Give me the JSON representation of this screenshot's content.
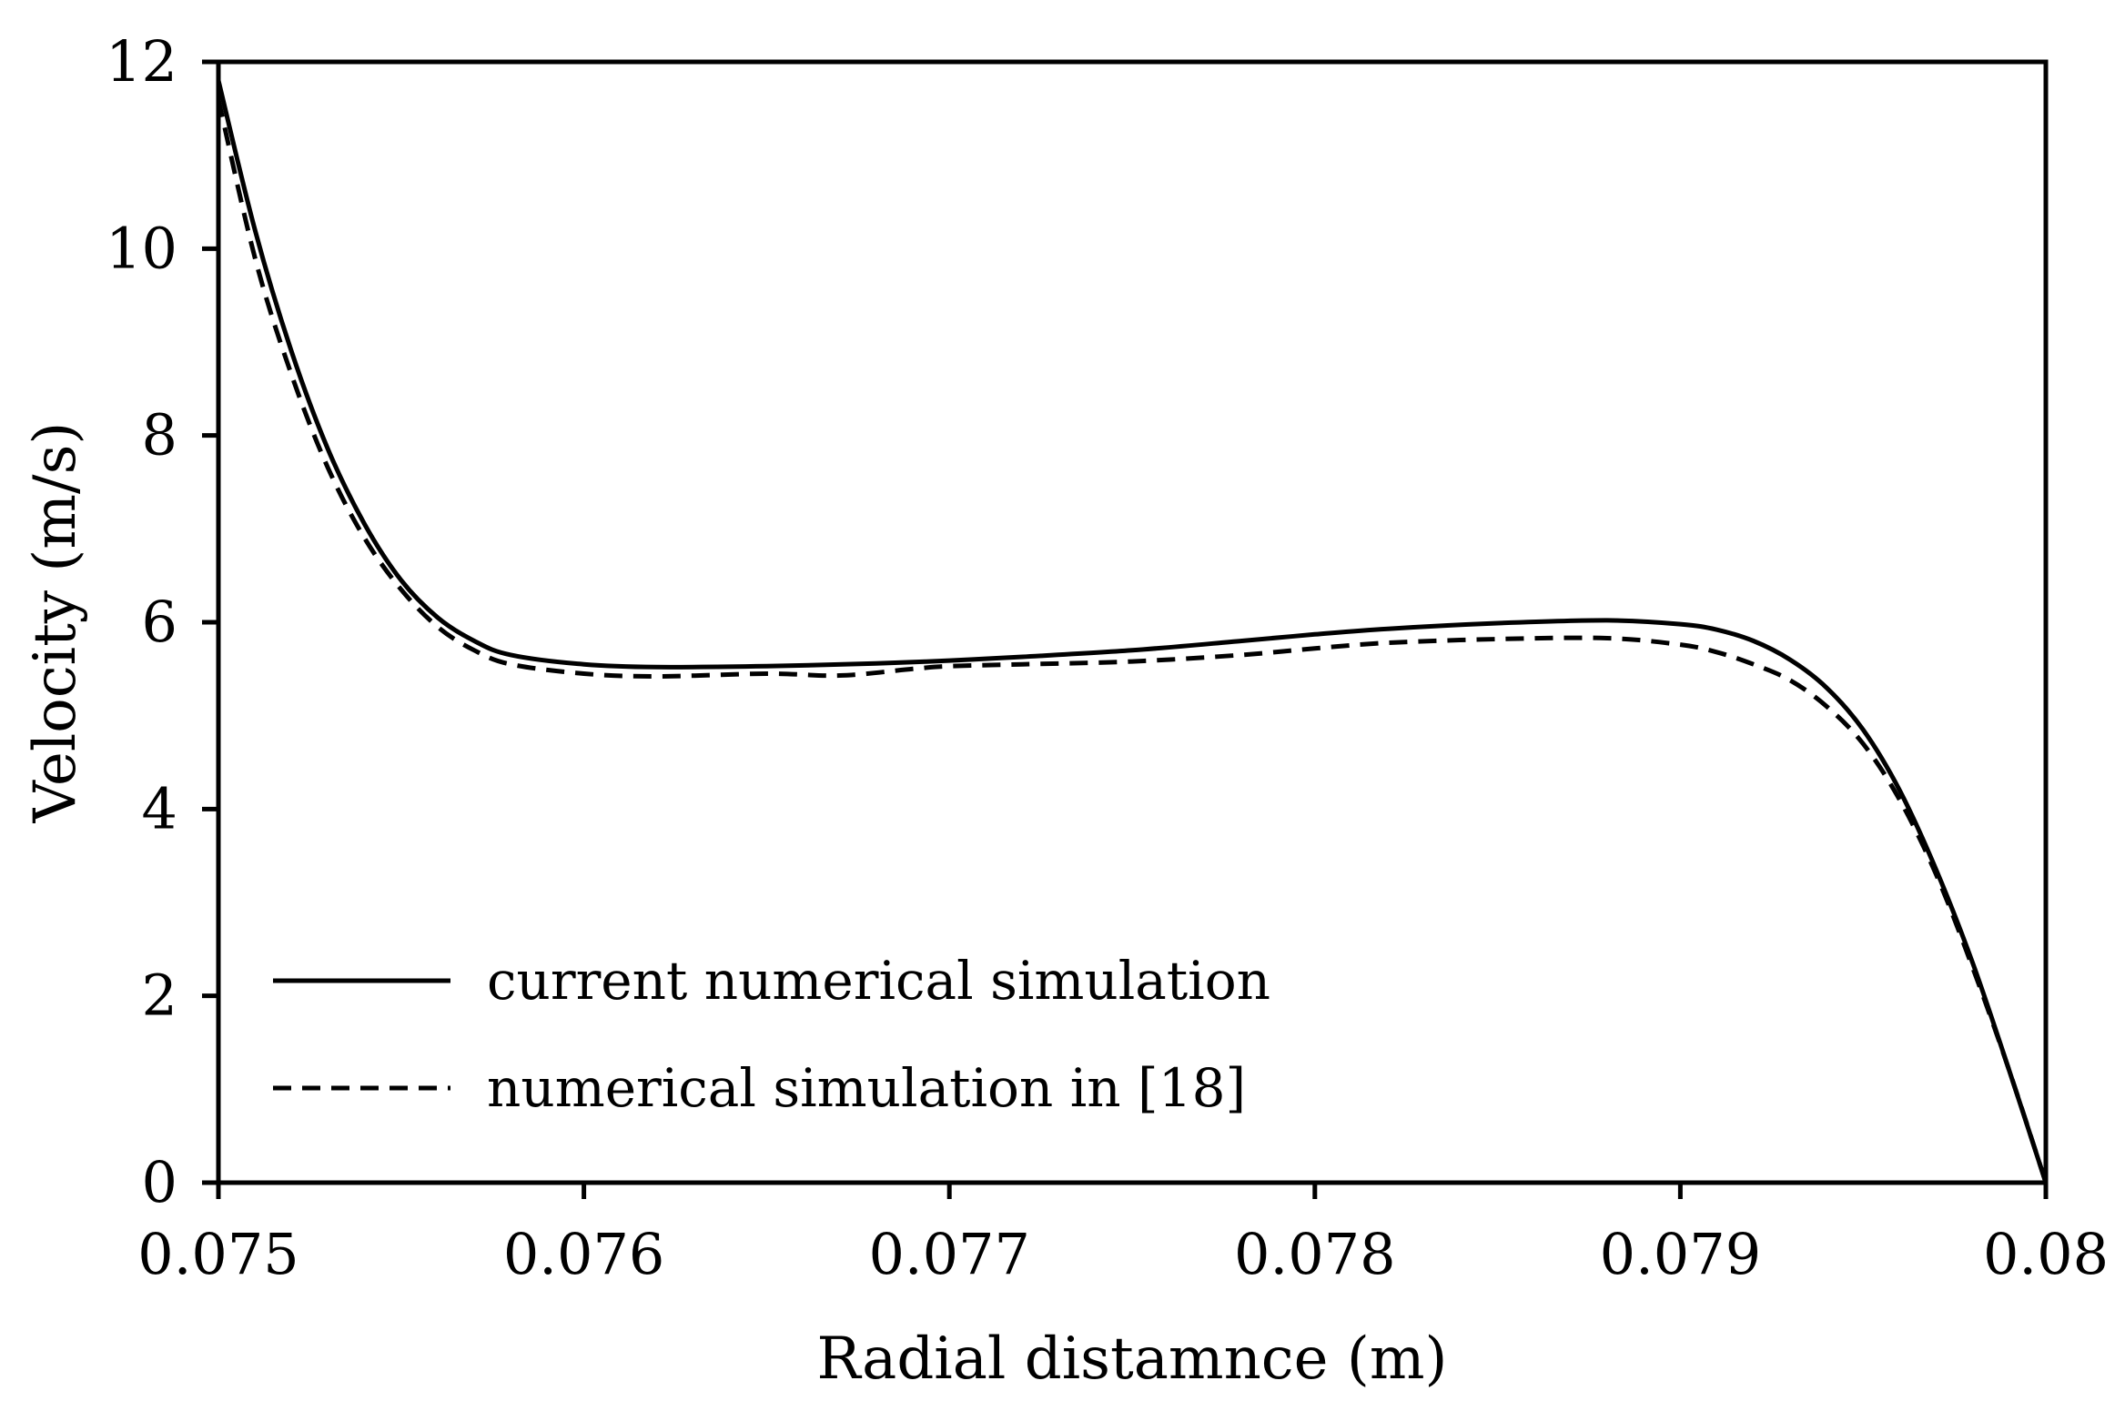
{
  "chart_data": {
    "type": "line",
    "title": "",
    "xlabel": "Radial distamnce (m)",
    "ylabel": "Velocity (m/s)",
    "xlim": [
      0.075,
      0.08
    ],
    "ylim": [
      0,
      12
    ],
    "grid": false,
    "legend_position": "bottom-left",
    "x_ticks": [
      "0.075",
      "0.076",
      "0.077",
      "0.078",
      "0.079",
      "0.08"
    ],
    "y_ticks": [
      "0",
      "2",
      "4",
      "6",
      "8",
      "10",
      "12"
    ],
    "series": [
      {
        "name": "current numerical simulation",
        "style": "solid",
        "color": "#000000",
        "points": [
          [
            0.075,
            11.8
          ],
          [
            0.0751,
            10.2
          ],
          [
            0.0752,
            8.9
          ],
          [
            0.0753,
            7.85
          ],
          [
            0.0754,
            7.05
          ],
          [
            0.0755,
            6.45
          ],
          [
            0.0756,
            6.05
          ],
          [
            0.0757,
            5.8
          ],
          [
            0.0758,
            5.65
          ],
          [
            0.076,
            5.55
          ],
          [
            0.0762,
            5.52
          ],
          [
            0.0765,
            5.53
          ],
          [
            0.0768,
            5.56
          ],
          [
            0.077,
            5.59
          ],
          [
            0.0772,
            5.63
          ],
          [
            0.0775,
            5.7
          ],
          [
            0.0778,
            5.8
          ],
          [
            0.078,
            5.87
          ],
          [
            0.0782,
            5.93
          ],
          [
            0.0785,
            5.99
          ],
          [
            0.0788,
            6.02
          ],
          [
            0.079,
            5.98
          ],
          [
            0.0791,
            5.92
          ],
          [
            0.0792,
            5.8
          ],
          [
            0.0793,
            5.6
          ],
          [
            0.0794,
            5.3
          ],
          [
            0.0795,
            4.85
          ],
          [
            0.0796,
            4.2
          ],
          [
            0.0797,
            3.35
          ],
          [
            0.0798,
            2.35
          ],
          [
            0.0799,
            1.2
          ],
          [
            0.08,
            0.0
          ]
        ]
      },
      {
        "name": "numerical simulation in [18]",
        "style": "dashed",
        "color": "#000000",
        "points": [
          [
            0.075,
            11.6
          ],
          [
            0.0751,
            9.9
          ],
          [
            0.0752,
            8.65
          ],
          [
            0.0753,
            7.65
          ],
          [
            0.0754,
            6.9
          ],
          [
            0.0755,
            6.35
          ],
          [
            0.0756,
            5.95
          ],
          [
            0.0757,
            5.7
          ],
          [
            0.0758,
            5.55
          ],
          [
            0.076,
            5.45
          ],
          [
            0.0762,
            5.42
          ],
          [
            0.0765,
            5.45
          ],
          [
            0.0767,
            5.43
          ],
          [
            0.0769,
            5.5
          ],
          [
            0.077,
            5.53
          ],
          [
            0.0772,
            5.55
          ],
          [
            0.0775,
            5.58
          ],
          [
            0.0778,
            5.65
          ],
          [
            0.078,
            5.72
          ],
          [
            0.0782,
            5.78
          ],
          [
            0.0785,
            5.82
          ],
          [
            0.0788,
            5.83
          ],
          [
            0.079,
            5.76
          ],
          [
            0.0791,
            5.68
          ],
          [
            0.0792,
            5.55
          ],
          [
            0.0793,
            5.38
          ],
          [
            0.0794,
            5.1
          ],
          [
            0.0795,
            4.7
          ],
          [
            0.0796,
            4.1
          ],
          [
            0.0797,
            3.3
          ],
          [
            0.0798,
            2.3
          ],
          [
            0.0799,
            1.2
          ],
          [
            0.08,
            0.0
          ]
        ]
      }
    ]
  }
}
